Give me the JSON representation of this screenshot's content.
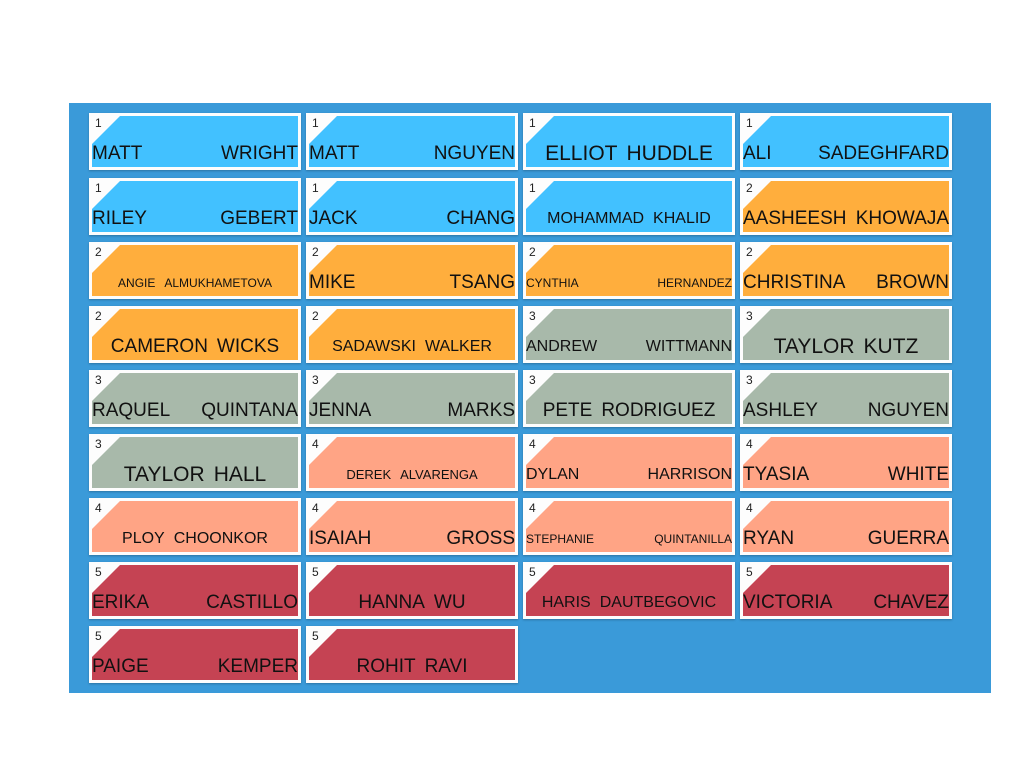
{
  "colors": {
    "board": "#3a9ad9",
    "level_1": "#42c1ff",
    "level_2": "#ffae3d",
    "level_3": "#a8b9aa",
    "level_4": "#ffa485",
    "level_5": "#c54353"
  },
  "cards": [
    {
      "level": "1",
      "first": "MATT",
      "last": "WRIGHT"
    },
    {
      "level": "1",
      "first": "MATT",
      "last": "NGUYEN"
    },
    {
      "level": "1",
      "first": "ELLIOT",
      "last": "HUDDLE"
    },
    {
      "level": "1",
      "first": "ALI",
      "last": "SADEGHFARD"
    },
    {
      "level": "1",
      "first": "RILEY",
      "last": "GEBERT"
    },
    {
      "level": "1",
      "first": "JACK",
      "last": "CHANG"
    },
    {
      "level": "1",
      "first": "MOHAMMAD",
      "last": "KHALID"
    },
    {
      "level": "2",
      "first": "AASHEESH",
      "last": "KHOWAJA"
    },
    {
      "level": "2",
      "first": "ANGIE",
      "last": "ALMUKHAMETOVA"
    },
    {
      "level": "2",
      "first": "MIKE",
      "last": "TSANG"
    },
    {
      "level": "2",
      "first": "CYNTHIA",
      "last": "HERNANDEZ"
    },
    {
      "level": "2",
      "first": "CHRISTINA",
      "last": "BROWN"
    },
    {
      "level": "2",
      "first": "CAMERON",
      "last": "WICKS"
    },
    {
      "level": "2",
      "first": "SADAWSKI",
      "last": "WALKER"
    },
    {
      "level": "3",
      "first": "ANDREW",
      "last": "WITTMANN"
    },
    {
      "level": "3",
      "first": "TAYLOR",
      "last": "KUTZ"
    },
    {
      "level": "3",
      "first": "RAQUEL",
      "last": "QUINTANA"
    },
    {
      "level": "3",
      "first": "JENNA",
      "last": "MARKS"
    },
    {
      "level": "3",
      "first": "PETE",
      "last": "RODRIGUEZ"
    },
    {
      "level": "3",
      "first": "ASHLEY",
      "last": "NGUYEN"
    },
    {
      "level": "3",
      "first": "TAYLOR",
      "last": "HALL"
    },
    {
      "level": "4",
      "first": "DEREK",
      "last": "ALVARENGA"
    },
    {
      "level": "4",
      "first": "DYLAN",
      "last": "HARRISON"
    },
    {
      "level": "4",
      "first": "TYASIA",
      "last": "WHITE"
    },
    {
      "level": "4",
      "first": "PLOY",
      "last": "CHOONKOR"
    },
    {
      "level": "4",
      "first": "ISAIAH",
      "last": "GROSS"
    },
    {
      "level": "4",
      "first": "STEPHANIE",
      "last": "QUINTANILLA"
    },
    {
      "level": "4",
      "first": "RYAN",
      "last": "GUERRA"
    },
    {
      "level": "5",
      "first": "ERIKA",
      "last": "CASTILLO"
    },
    {
      "level": "5",
      "first": "HANNA",
      "last": "WU"
    },
    {
      "level": "5",
      "first": "HARIS",
      "last": "DAUTBEGOVIC"
    },
    {
      "level": "5",
      "first": "VICTORIA",
      "last": "CHAVEZ"
    },
    {
      "level": "5",
      "first": "PAIGE",
      "last": "KEMPER"
    },
    {
      "level": "5",
      "first": "ROHIT",
      "last": "RAVI"
    }
  ]
}
